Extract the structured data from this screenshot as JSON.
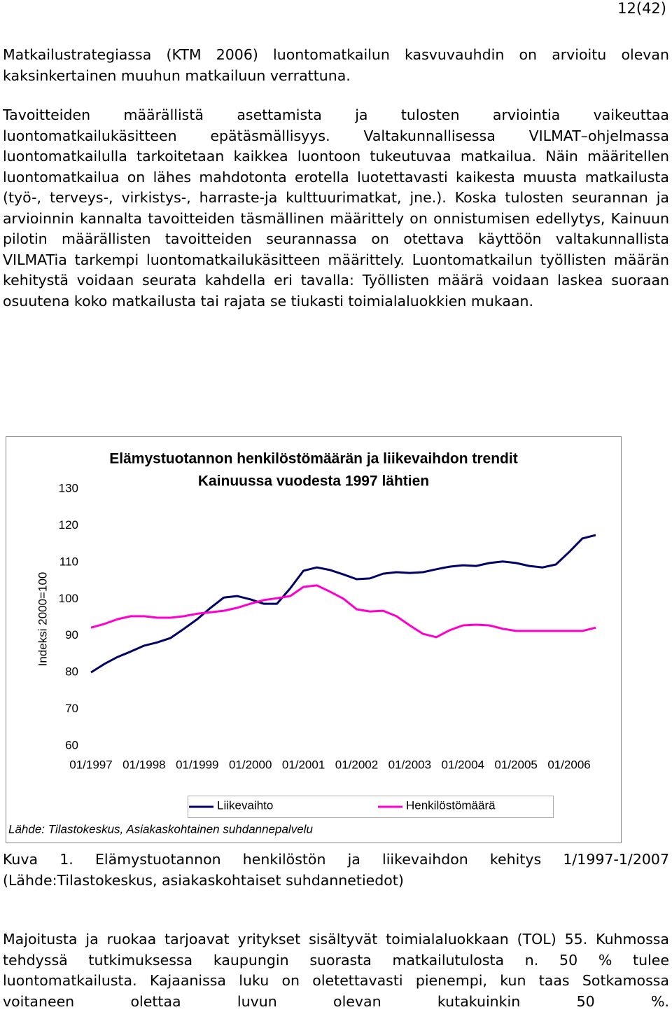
{
  "page_number": "12(42)",
  "paragraphs": [
    "Matkailustrategiassa (KTM 2006)  luontomatkailun kasvuvauhdin on arvioitu olevan kaksinkertainen muuhun matkailuun verrattuna.",
    "Tavoitteiden määrällistä asettamista ja tulosten arviointia vaikeuttaa luontomatkailukäsitteen epätäsmällisyys. Valtakunnallisessa VILMAT–ohjelmassa luontomatkailulla tarkoitetaan kaikkea luontoon tukeutuvaa matkailua. Näin määritellen luontomatkailua on lähes mahdotonta erotella luotettavasti kaikesta muusta matkailusta (työ-, terveys-, virkistys-, harraste-ja kulttuurimatkat, jne.). Koska tulosten seurannan ja arvioinnin kannalta tavoitteiden täsmällinen määrittely on onnistumisen edellytys, Kainuun pilotin määrällisten tavoitteiden seurannassa on otettava käyttöön valtakunnallista VILMATia tarkempi luontomatkailukäsitteen määrittely. Luontomatkailun työllisten määrän kehitystä voidaan seurata kahdella eri tavalla: Työllisten määrä voidaan laskea suoraan osuutena koko matkailusta tai rajata se tiukasti toimialaluokkien mukaan."
  ],
  "chart_data": {
    "type": "line",
    "title": [
      "Elämystuotannon henkilöstömäärän ja liikevaihdon trendit",
      "Kainuussa vuodesta 1997 lähtien"
    ],
    "y_label": "Indeksi 2000=100",
    "source": "Lähde: Tilastokeskus, Asiakaskohtainen suhdannepalvelu",
    "legend": "bottom",
    "ylim": [
      60,
      130
    ],
    "yticks": [
      60,
      70,
      80,
      90,
      100,
      110,
      120,
      130
    ],
    "xlim": [
      1997,
      2006.5
    ],
    "xticks": [
      {
        "value": 1997,
        "label": "01/1997"
      },
      {
        "value": 1998,
        "label": "01/1998"
      },
      {
        "value": 1999,
        "label": "01/1999"
      },
      {
        "value": 2000,
        "label": "01/2000"
      },
      {
        "value": 2001,
        "label": "01/2001"
      },
      {
        "value": 2002,
        "label": "01/2002"
      },
      {
        "value": 2003,
        "label": "01/2003"
      },
      {
        "value": 2004,
        "label": "01/2004"
      },
      {
        "value": 2005,
        "label": "01/2005"
      },
      {
        "value": 2006,
        "label": "01/2006"
      }
    ],
    "x": [
      1997,
      1997.25,
      1997.5,
      1997.75,
      1998,
      1998.25,
      1998.5,
      1998.75,
      1999,
      1999.25,
      1999.5,
      1999.75,
      2000,
      2000.25,
      2000.5,
      2000.75,
      2001,
      2001.25,
      2001.5,
      2001.75,
      2002,
      2002.25,
      2002.5,
      2002.75,
      2003,
      2003.25,
      2003.5,
      2003.75,
      2004,
      2004.25,
      2004.5,
      2004.75,
      2005,
      2005.25,
      2005.5,
      2005.75,
      2006,
      2006.25,
      2006.5
    ],
    "series": [
      {
        "name": "Liikevaihto",
        "color": "#000066",
        "values": [
          80.0,
          82.3,
          84.2,
          85.7,
          87.3,
          88.2,
          89.4,
          91.9,
          94.5,
          97.6,
          100.4,
          100.8,
          99.9,
          98.7,
          98.7,
          102.9,
          107.7,
          108.6,
          107.9,
          106.7,
          105.4,
          105.6,
          106.9,
          107.3,
          107.1,
          107.3,
          108.1,
          108.8,
          109.2,
          109.0,
          109.8,
          110.2,
          109.8,
          109.0,
          108.6,
          109.4,
          112.8,
          116.5,
          117.4
        ]
      },
      {
        "name": "Henkilöstömäärä",
        "color": "#ff00cc",
        "values": [
          92.2,
          93.2,
          94.5,
          95.3,
          95.3,
          94.9,
          94.9,
          95.3,
          96.0,
          96.4,
          96.8,
          97.6,
          98.7,
          99.7,
          100.2,
          100.8,
          103.3,
          103.7,
          102.0,
          100.1,
          97.2,
          96.6,
          96.8,
          95.3,
          92.8,
          90.5,
          89.6,
          91.5,
          92.8,
          93.0,
          92.8,
          91.9,
          91.3,
          91.3,
          91.3,
          91.3,
          91.3,
          91.3,
          92.2
        ]
      }
    ]
  },
  "caption": "Kuva 1. Elämystuotannon henkilöstön ja liikevaihdon kehitys 1/1997-1/2007 (Lähde:Tilastokeskus, asiakaskohtaiset suhdannetiedot)",
  "paragraphs_after": [
    "Majoitusta ja ruokaa tarjoavat yritykset sisältyvät toimialaluokkaan (TOL) 55. Kuhmossa tehdyssä tutkimuksessa kaupungin suorasta matkailutulosta n. 50 % tulee luontomatkailusta. Kajaanissa luku on oletettavasti pienempi, kun taas Sotkamossa voitaneen olettaa luvun olevan kutakuinkin 50 %."
  ]
}
